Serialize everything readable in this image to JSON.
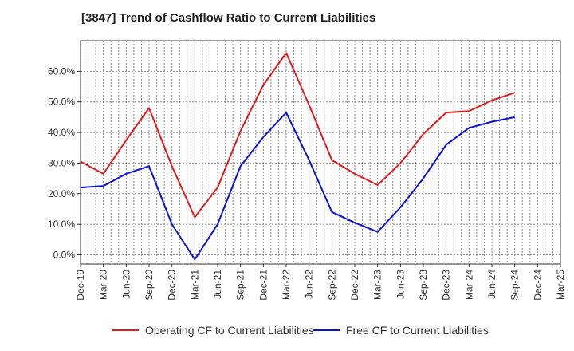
{
  "chart_data": {
    "type": "line",
    "title": "[3847]  Trend of Cashflow Ratio to Current Liabilities",
    "x": [
      "Dec-19",
      "Mar-20",
      "Jun-20",
      "Sep-20",
      "Dec-20",
      "Mar-21",
      "Jun-21",
      "Sep-21",
      "Dec-21",
      "Mar-22",
      "Jun-22",
      "Sep-22",
      "Dec-22",
      "Mar-23",
      "Jun-23",
      "Sep-23",
      "Dec-23",
      "Mar-24",
      "Jun-24",
      "Sep-24",
      "Dec-24",
      "Mar-25"
    ],
    "yticks": [
      "0.0%",
      "10.0%",
      "20.0%",
      "30.0%",
      "40.0%",
      "50.0%",
      "60.0%"
    ],
    "ylim": [
      -3,
      70
    ],
    "grid": true,
    "legend_position": "bottom",
    "series": [
      {
        "name": "Operating CF to Current Liabilities",
        "color": "#e31a1c",
        "values": [
          30.5,
          26.5,
          37.5,
          48.0,
          29.0,
          12.3,
          22.0,
          40.5,
          55.5,
          66.0,
          49.0,
          31.0,
          26.5,
          22.8,
          30.0,
          39.5,
          46.5,
          47.0,
          50.5,
          53.0,
          null,
          null
        ]
      },
      {
        "name": "Free CF to Current Liabilities",
        "color": "#0a14d8",
        "values": [
          22.0,
          22.5,
          26.5,
          29.0,
          10.0,
          -1.5,
          10.0,
          29.0,
          38.5,
          46.5,
          31.0,
          14.0,
          10.5,
          7.5,
          15.5,
          25.0,
          36.0,
          41.5,
          43.5,
          45.0,
          null,
          null
        ]
      }
    ]
  }
}
